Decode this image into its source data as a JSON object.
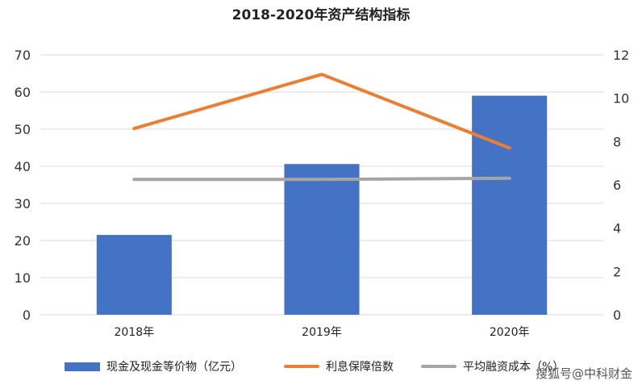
{
  "chart_data": {
    "type": "bar",
    "title": "2018-2020年资产结构指标",
    "categories": [
      "2018年",
      "2019年",
      "2020年"
    ],
    "series": [
      {
        "name": "现金及现金等价物（亿元）",
        "type": "bar",
        "axis": "left",
        "values": [
          21.5,
          40.6,
          59.0
        ],
        "color": "#4472C4"
      },
      {
        "name": "利息保障倍数",
        "type": "line",
        "axis": "right",
        "values": [
          8.6,
          11.1,
          7.7
        ],
        "color": "#ED7D31"
      },
      {
        "name": "平均融资成本（%）",
        "type": "line",
        "axis": "right",
        "values": [
          6.25,
          6.25,
          6.3
        ],
        "color": "#A5A5A5"
      }
    ],
    "y_left": {
      "min": 0,
      "max": 70,
      "ticks": [
        0,
        10,
        20,
        30,
        40,
        50,
        60,
        70
      ]
    },
    "y_right": {
      "min": 0,
      "max": 12,
      "ticks": [
        0,
        2,
        4,
        6,
        8,
        10,
        12
      ]
    },
    "grid": true,
    "legend_position": "bottom"
  },
  "watermark": "搜狐号@中科财金"
}
